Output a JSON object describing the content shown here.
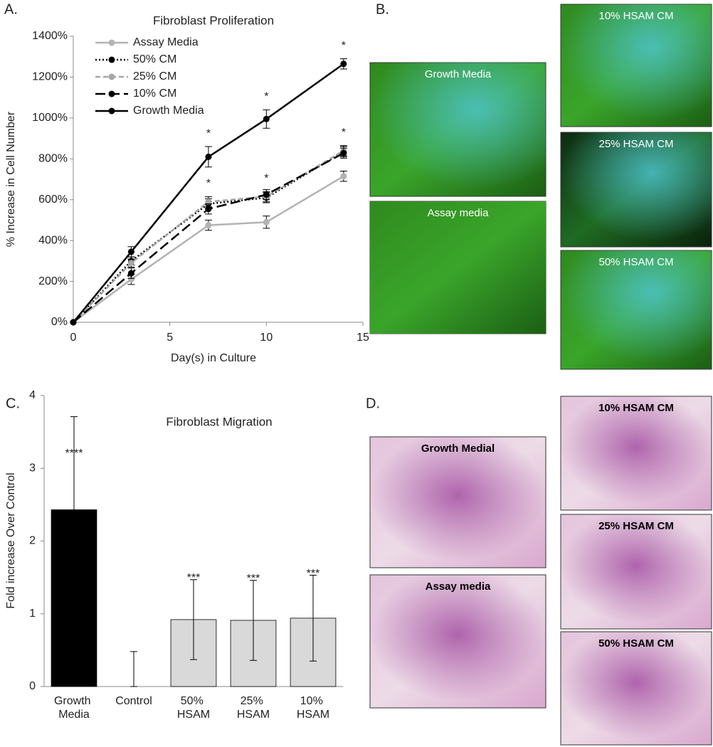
{
  "chart_data": [
    {
      "type": "line",
      "title": "Fibroblast Proliferation",
      "xlabel": "Day(s) in Culture",
      "ylabel": "% Increase in Cell Number",
      "x": [
        0,
        3,
        7,
        10,
        14
      ],
      "xlim": [
        0,
        15
      ],
      "xticks": [
        0,
        5,
        10,
        15
      ],
      "ylim": [
        0,
        1400
      ],
      "yticks": [
        {
          "value": 0,
          "label": "0%"
        },
        {
          "value": 200,
          "label": "200%"
        },
        {
          "value": 400,
          "label": "400%"
        },
        {
          "value": 600,
          "label": "600%"
        },
        {
          "value": 800,
          "label": "800%"
        },
        {
          "value": 1000,
          "label": "1000%"
        },
        {
          "value": 1200,
          "label": "1200%"
        },
        {
          "value": 1400,
          "label": "1400%"
        }
      ],
      "series": [
        {
          "name": "Assay Media",
          "color": "#b3b3b3",
          "line_style": "solid",
          "values": [
            0,
            210,
            475,
            490,
            715
          ],
          "errors": [
            0,
            25,
            25,
            30,
            25
          ]
        },
        {
          "name": "50% CM",
          "color": "#000000",
          "line_style": "dotted",
          "values": [
            0,
            300,
            580,
            610,
            835
          ],
          "errors": [
            0,
            20,
            25,
            25,
            25
          ]
        },
        {
          "name": "25% CM",
          "color": "#a6a6a6",
          "line_style": "dashed",
          "values": [
            0,
            290,
            590,
            615,
            840
          ],
          "errors": [
            0,
            20,
            25,
            25,
            25
          ]
        },
        {
          "name": "10% CM",
          "color": "#000000",
          "line_style": "long-dashed",
          "values": [
            0,
            240,
            555,
            625,
            828
          ],
          "errors": [
            0,
            25,
            25,
            25,
            25
          ]
        },
        {
          "name": "Growth Media",
          "color": "#000000",
          "line_style": "solid",
          "values": [
            0,
            345,
            810,
            995,
            1265
          ],
          "errors": [
            0,
            25,
            50,
            45,
            25
          ]
        }
      ],
      "annotations": [
        {
          "text": "*",
          "series": 4,
          "index": 2
        },
        {
          "text": "*",
          "series": 4,
          "index": 3
        },
        {
          "text": "*",
          "series": 4,
          "index": 4
        },
        {
          "text": "*",
          "series": 2,
          "index": 2
        },
        {
          "text": "*",
          "series": 2,
          "index": 3
        },
        {
          "text": "*",
          "series": 2,
          "index": 4
        }
      ],
      "legend": "top-left"
    },
    {
      "type": "bar",
      "title": "Fibroblast Migration",
      "ylabel": "Fold increase Over Control",
      "categories": [
        "Growth Media",
        "Control",
        "50% HSAM",
        "25% HSAM",
        "10% HSAM"
      ],
      "values": [
        2.43,
        0,
        0.92,
        0.91,
        0.94
      ],
      "errors": [
        1.28,
        0.48,
        0.55,
        0.55,
        0.59
      ],
      "colors": [
        "#000000",
        "#d9d9d9",
        "#d9d9d9",
        "#d9d9d9",
        "#d9d9d9"
      ],
      "ylim": [
        0,
        4
      ],
      "yticks": [
        0,
        1,
        2,
        3,
        4
      ],
      "annotations": [
        {
          "text": "****",
          "index": 0
        },
        {
          "text": "***",
          "index": 2
        },
        {
          "text": "***",
          "index": 3
        },
        {
          "text": "***",
          "index": 4
        }
      ]
    }
  ],
  "panels": {
    "a": "A.",
    "b": "B.",
    "c": "C.",
    "d": "D.",
    "b_images": [
      "Growth Media",
      "Assay media",
      "10% HSAM CM",
      "25% HSAM CM",
      "50% HSAM CM"
    ],
    "d_images": [
      "Growth Medial",
      "Assay media",
      "10% HSAM CM",
      "25% HSAM CM",
      "50% HSAM CM"
    ]
  }
}
